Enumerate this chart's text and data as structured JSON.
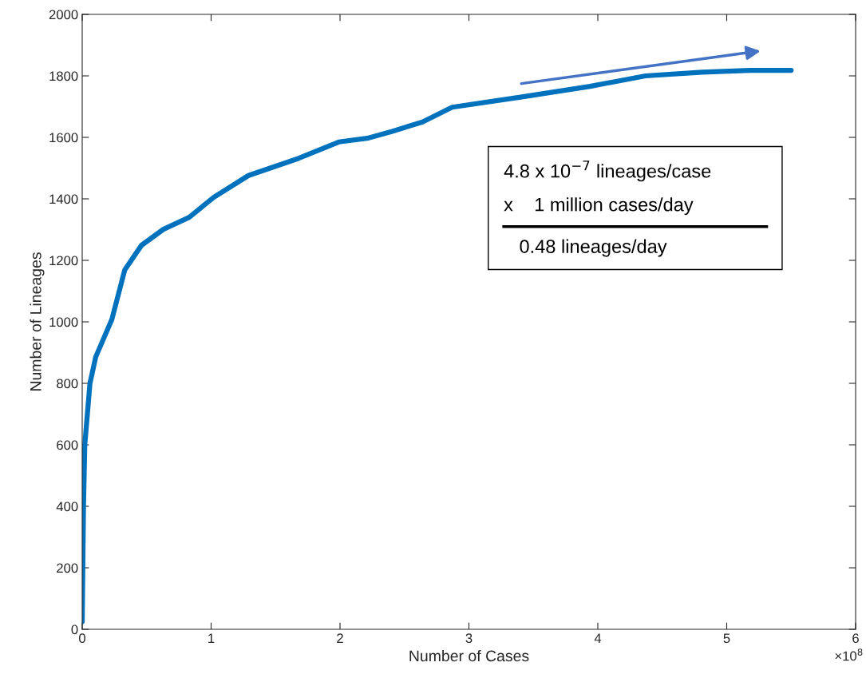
{
  "chart_data": {
    "type": "line",
    "xlabel": "Number of Cases",
    "ylabel": "Number of Lineages",
    "x": [
      0,
      0.01,
      0.02,
      0.06,
      0.105,
      0.23,
      0.33,
      0.46,
      0.63,
      0.83,
      1.02,
      1.29,
      1.68,
      1.99,
      2.21,
      2.4,
      2.64,
      2.87,
      3.39,
      3.94,
      4.37,
      4.81,
      5.18,
      5.5
    ],
    "series": [
      {
        "color": "#0072bd",
        "values": [
          25,
          400,
          600,
          800,
          886,
          1008,
          1169,
          1249,
          1301,
          1340,
          1405,
          1476,
          1532,
          1585,
          1597,
          1619,
          1650,
          1698,
          1730,
          1766,
          1800,
          1812,
          1818,
          1818
        ]
      }
    ],
    "xlim": [
      0,
      6
    ],
    "ylim": [
      0,
      2000
    ],
    "xticks": [
      0,
      1,
      2,
      3,
      4,
      5,
      6
    ],
    "yticks": [
      0,
      200,
      400,
      600,
      800,
      1000,
      1200,
      1400,
      1600,
      1800,
      2000
    ],
    "annotations": [
      "×10$^{8}$",
      "4.8 x 10$^{−7}$ lineages/case",
      "x    1 million cases/day",
      "0.48 lineages/day"
    ],
    "grid": false,
    "legend": false,
    "marker": "none",
    "line_style": "solid"
  }
}
